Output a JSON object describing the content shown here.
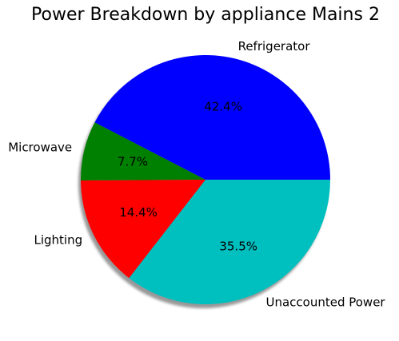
{
  "chart_data": {
    "type": "pie",
    "title": "Power Breakdown by appliance Mains 2",
    "shadow": true,
    "start_angle_deg": 0,
    "direction": "counterclockwise",
    "slices": [
      {
        "label": "Refrigerator",
        "value": 42.4,
        "pct_label": "42.4%",
        "color": "#0000ff"
      },
      {
        "label": "Microwave",
        "value": 7.7,
        "pct_label": "7.7%",
        "color": "#008000"
      },
      {
        "label": "Lighting",
        "value": 14.4,
        "pct_label": "14.4%",
        "color": "#ff0000"
      },
      {
        "label": "Unaccounted Power",
        "value": 35.5,
        "pct_label": "35.5%",
        "color": "#00bfbf"
      }
    ]
  }
}
